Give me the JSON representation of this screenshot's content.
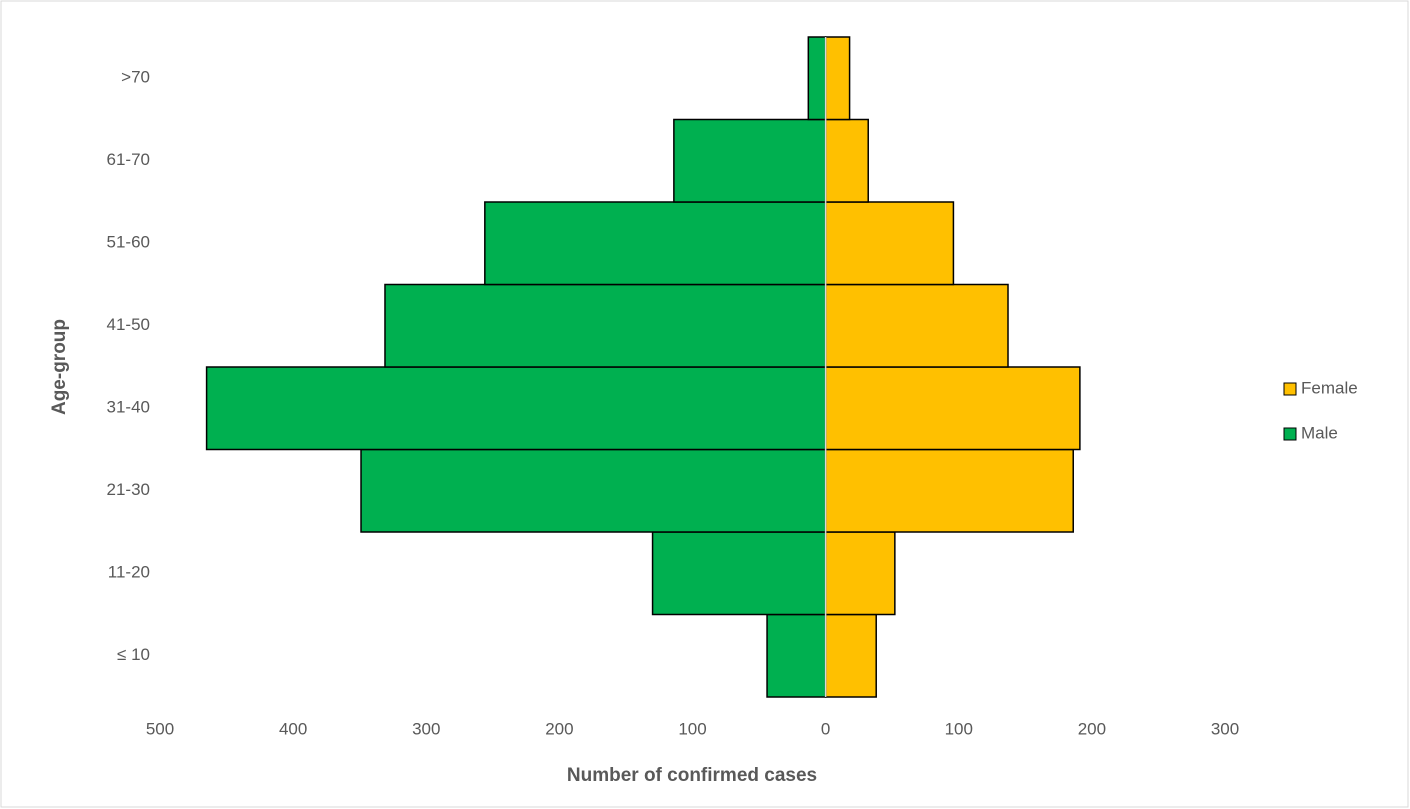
{
  "chart_data": {
    "type": "pyramid",
    "x_label": "Number of confirmed cases",
    "y_label": "Age-group",
    "categories": [
      "≤ 10",
      "11-20",
      "21-30",
      "31-40",
      "41-50",
      "51-60",
      "61-70",
      ">70"
    ],
    "series": [
      {
        "name": "Female",
        "color": "#FFC000",
        "values": [
          38,
          52,
          186,
          191,
          137,
          96,
          32,
          18
        ]
      },
      {
        "name": "Male",
        "color": "#00B050",
        "values": [
          -44,
          -130,
          -349,
          -465,
          -331,
          -256,
          -114,
          -13
        ]
      }
    ],
    "xlim": [
      -500,
      300
    ],
    "xticks": [
      {
        "value": -500,
        "label": "500"
      },
      {
        "value": -400,
        "label": "400"
      },
      {
        "value": -300,
        "label": "300"
      },
      {
        "value": -200,
        "label": "200"
      },
      {
        "value": -100,
        "label": "100"
      },
      0,
      100,
      200,
      300
    ],
    "grid": false,
    "legend": "right"
  }
}
